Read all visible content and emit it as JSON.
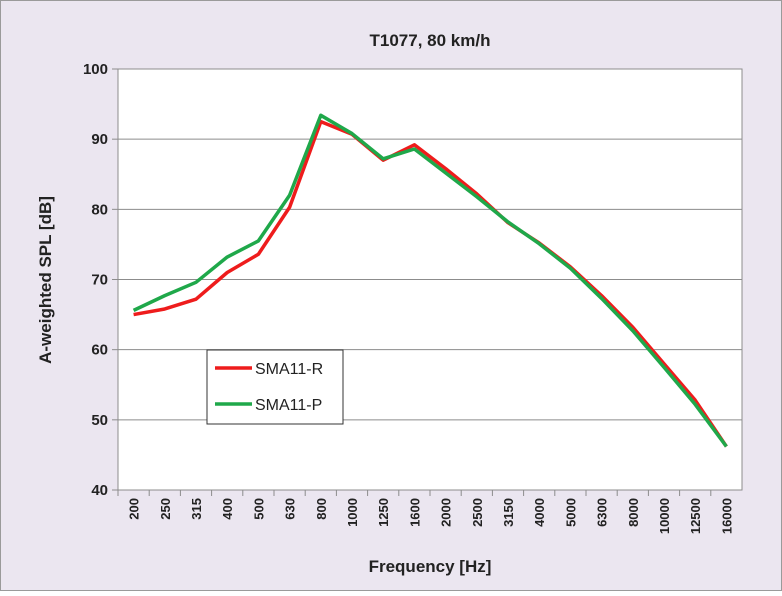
{
  "chart_data": {
    "type": "line",
    "title": "T1077, 80 km/h",
    "xlabel": "Frequency [Hz]",
    "ylabel": "A-weighted SPL [dB]",
    "categories": [
      "200",
      "250",
      "315",
      "400",
      "500",
      "630",
      "800",
      "1000",
      "1250",
      "1600",
      "2000",
      "2500",
      "3150",
      "4000",
      "5000",
      "6300",
      "8000",
      "10000",
      "12500",
      "16000"
    ],
    "series": [
      {
        "name": "SMA11-R",
        "color": "#ee1c1c",
        "values": [
          65.0,
          65.8,
          67.2,
          71.0,
          73.6,
          80.3,
          92.5,
          90.7,
          87.0,
          89.2,
          85.8,
          82.2,
          78.1,
          75.2,
          71.8,
          67.7,
          63.2,
          58.0,
          52.8,
          46.2
        ]
      },
      {
        "name": "SMA11-P",
        "color": "#1fa84a",
        "values": [
          65.6,
          67.7,
          69.6,
          73.2,
          75.5,
          82.0,
          93.4,
          90.8,
          87.2,
          88.6,
          85.2,
          81.8,
          78.2,
          75.1,
          71.6,
          67.3,
          62.7,
          57.5,
          52.2,
          46.2
        ]
      }
    ],
    "ylim": [
      40,
      100
    ],
    "yticks": [
      40,
      50,
      60,
      70,
      80,
      90,
      100
    ],
    "grid": true,
    "legend": "lower left"
  }
}
